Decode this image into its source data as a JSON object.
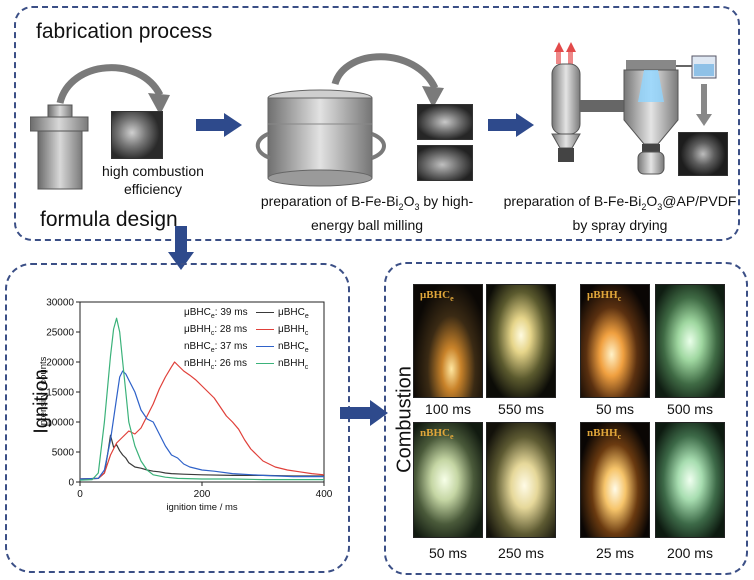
{
  "top_panel": {
    "title": "fabrication process",
    "formula_label": "formula design",
    "step1_caption_line1": "high combustion",
    "step1_caption_line2": "efficiency",
    "step2_caption_pre": "preparation of B-Fe-Bi",
    "step2_caption_sub1": "2",
    "step2_caption_mid": "O",
    "step2_caption_sub2": "3",
    "step2_caption_post": " by high-",
    "step2_caption_line2": "energy ball milling",
    "step3_caption_pre": "preparation of B-Fe-Bi",
    "step3_caption_sub1": "2",
    "step3_caption_mid": "O",
    "step3_caption_sub2": "3",
    "step3_caption_post": "@AP/PVDF",
    "step3_caption_line2": "by spray drying"
  },
  "ignition_panel": {
    "title": "Ignition",
    "legend": {
      "items": [
        {
          "pre": "μBHC",
          "sub": "e",
          "color": "#3a3a3a"
        },
        {
          "pre": "μBHH",
          "sub": "c",
          "color": "#e0403a"
        },
        {
          "pre": "nBHC",
          "sub": "e",
          "color": "#2f62c9"
        },
        {
          "pre": "nBHH",
          "sub": "c",
          "color": "#3bb27a"
        }
      ]
    },
    "delays": [
      {
        "pre": "μBHC",
        "sub": "e",
        "post": ": 39 ms"
      },
      {
        "pre": "μBHH",
        "sub": "c",
        "post": ": 28 ms"
      },
      {
        "pre": "nBHC",
        "sub": "e",
        "post": ": 37 ms"
      },
      {
        "pre": "nBHH",
        "sub": "c",
        "post": ": 26 ms"
      }
    ]
  },
  "combustion_panel": {
    "title": "Combustion",
    "groups": [
      {
        "tag_pre": "μBHC",
        "tag_sub": "e",
        "times": [
          "100 ms",
          "550 ms"
        ]
      },
      {
        "tag_pre": "μBHH",
        "tag_sub": "c",
        "times": [
          "50 ms",
          "500 ms"
        ]
      },
      {
        "tag_pre": "nBHC",
        "tag_sub": "e",
        "times": [
          "50 ms",
          "250 ms"
        ]
      },
      {
        "tag_pre": "nBHH",
        "tag_sub": "c",
        "times": [
          "25 ms",
          "200 ms"
        ]
      }
    ]
  },
  "colors": {
    "panel_border": "#3b4f86",
    "arrow": "#2e4a8c"
  },
  "chart_data": {
    "type": "line",
    "title": "",
    "xlabel": "ignition time / ms",
    "ylabel": "intensity / counts",
    "xlim": [
      0,
      400
    ],
    "ylim": [
      0,
      30000
    ],
    "xticks": [
      0,
      200,
      400
    ],
    "yticks": [
      0,
      5000,
      10000,
      15000,
      20000,
      25000,
      30000
    ],
    "legend_position": "top-right",
    "series": [
      {
        "name": "μBHCe",
        "color": "#3a3a3a",
        "x": [
          0,
          30,
          40,
          45,
          50,
          55,
          60,
          65,
          70,
          75,
          80,
          90,
          100,
          110,
          120,
          130,
          140,
          150,
          170,
          200,
          250,
          300,
          350,
          400
        ],
        "y": [
          500,
          600,
          1500,
          4500,
          7800,
          5800,
          6200,
          5200,
          4500,
          4000,
          3200,
          2500,
          2300,
          2000,
          1800,
          1700,
          1500,
          1400,
          1300,
          1200,
          1100,
          1100,
          1000,
          1000
        ]
      },
      {
        "name": "μBHHc",
        "color": "#e0403a",
        "x": [
          0,
          30,
          40,
          50,
          60,
          70,
          80,
          90,
          100,
          110,
          120,
          130,
          140,
          150,
          155,
          160,
          170,
          180,
          190,
          200,
          210,
          220,
          230,
          240,
          250,
          260,
          270,
          280,
          290,
          300,
          320,
          340,
          360,
          380,
          400
        ],
        "y": [
          500,
          600,
          1500,
          4500,
          6500,
          7500,
          8500,
          8000,
          9000,
          11000,
          13000,
          15500,
          17500,
          19200,
          20000,
          19500,
          18500,
          17800,
          17000,
          16000,
          15000,
          14000,
          12500,
          11000,
          10000,
          8800,
          7000,
          5500,
          4500,
          3500,
          2500,
          2000,
          1700,
          1400,
          1200
        ]
      },
      {
        "name": "nBHCe",
        "color": "#2f62c9",
        "x": [
          0,
          30,
          40,
          50,
          60,
          65,
          70,
          75,
          80,
          90,
          100,
          110,
          120,
          130,
          140,
          150,
          160,
          170,
          180,
          200,
          220,
          250,
          300,
          350,
          400
        ],
        "y": [
          500,
          600,
          2000,
          7000,
          14000,
          17500,
          18500,
          18000,
          17000,
          15000,
          12000,
          10500,
          10000,
          8000,
          6000,
          4500,
          4000,
          3000,
          2500,
          2000,
          1800,
          1400,
          1100,
          900,
          900
        ]
      },
      {
        "name": "nBHHc",
        "color": "#3bb27a",
        "x": [
          0,
          20,
          30,
          40,
          50,
          55,
          60,
          65,
          70,
          75,
          80,
          90,
          100,
          110,
          120,
          140,
          160,
          200,
          250,
          300,
          350,
          400
        ],
        "y": [
          300,
          400,
          1500,
          10000,
          21000,
          25500,
          27300,
          25000,
          20000,
          15000,
          10000,
          6000,
          3500,
          2000,
          1200,
          800,
          600,
          500,
          500,
          400,
          400,
          400
        ]
      }
    ]
  }
}
